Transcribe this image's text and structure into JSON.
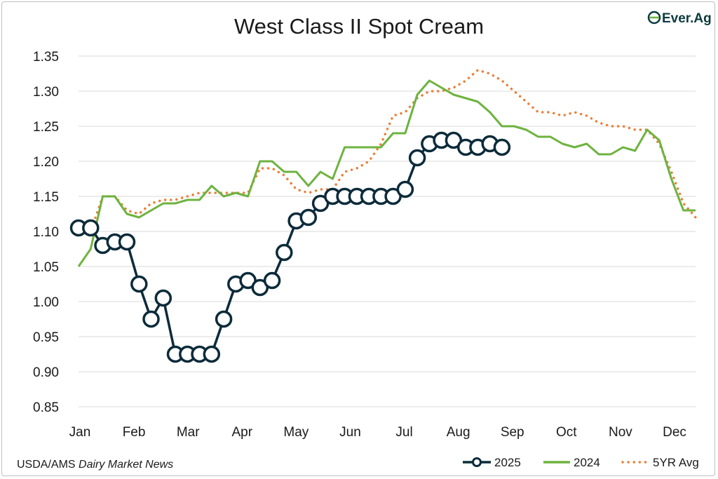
{
  "chart_data": {
    "type": "line",
    "title": "West Class II Spot Cream",
    "xlabel": "",
    "ylabel": "",
    "ylim": [
      0.85,
      1.35
    ],
    "yticks": [
      "1.35",
      "1.30",
      "1.25",
      "1.20",
      "1.15",
      "1.10",
      "1.05",
      "1.00",
      "0.95",
      "0.90",
      "0.85"
    ],
    "months": [
      "Jan",
      "Feb",
      "Mar",
      "Apr",
      "May",
      "Jun",
      "Jul",
      "Aug",
      "Sep",
      "Oct",
      "Nov",
      "Dec"
    ],
    "weeks_per_year": 52,
    "grid": true,
    "legend_position": "bottom-right",
    "series": [
      {
        "name": "2025",
        "color": "#0c2b3a",
        "style": "solid-markers",
        "values": [
          1.105,
          1.105,
          1.08,
          1.085,
          1.085,
          1.025,
          0.975,
          1.005,
          0.925,
          0.925,
          0.925,
          0.925,
          0.975,
          1.025,
          1.03,
          1.02,
          1.03,
          1.07,
          1.115,
          1.12,
          1.14,
          1.15,
          1.15,
          1.15,
          1.15,
          1.15,
          1.15,
          1.16,
          1.205,
          1.225,
          1.23,
          1.23,
          1.22,
          1.22,
          1.225,
          1.22
        ]
      },
      {
        "name": "2024",
        "color": "#6db33f",
        "style": "solid",
        "values": [
          1.05,
          1.075,
          1.15,
          1.15,
          1.125,
          1.12,
          1.13,
          1.14,
          1.14,
          1.145,
          1.145,
          1.165,
          1.15,
          1.155,
          1.15,
          1.2,
          1.2,
          1.185,
          1.185,
          1.165,
          1.185,
          1.175,
          1.22,
          1.22,
          1.22,
          1.22,
          1.24,
          1.24,
          1.295,
          1.315,
          1.305,
          1.295,
          1.29,
          1.285,
          1.27,
          1.25,
          1.25,
          1.245,
          1.235,
          1.235,
          1.225,
          1.22,
          1.225,
          1.21,
          1.21,
          1.22,
          1.215,
          1.245,
          1.23,
          1.175,
          1.13,
          1.13
        ]
      },
      {
        "name": "5YR Avg",
        "color": "#e9813a",
        "style": "dotted",
        "values": [
          1.11,
          1.1,
          1.15,
          1.15,
          1.13,
          1.125,
          1.14,
          1.145,
          1.145,
          1.15,
          1.155,
          1.155,
          1.155,
          1.155,
          1.155,
          1.19,
          1.19,
          1.18,
          1.16,
          1.155,
          1.16,
          1.16,
          1.185,
          1.19,
          1.2,
          1.225,
          1.265,
          1.27,
          1.29,
          1.3,
          1.3,
          1.305,
          1.315,
          1.33,
          1.325,
          1.315,
          1.3,
          1.285,
          1.27,
          1.27,
          1.265,
          1.27,
          1.265,
          1.255,
          1.25,
          1.25,
          1.245,
          1.245,
          1.225,
          1.185,
          1.14,
          1.12
        ]
      }
    ]
  },
  "source": {
    "prefix": "USDA/AMS ",
    "italic": "Dairy Market News"
  },
  "logo": {
    "text": "Ever.Ag",
    "color": "#0d3b3e",
    "accent": "#6db33f"
  }
}
